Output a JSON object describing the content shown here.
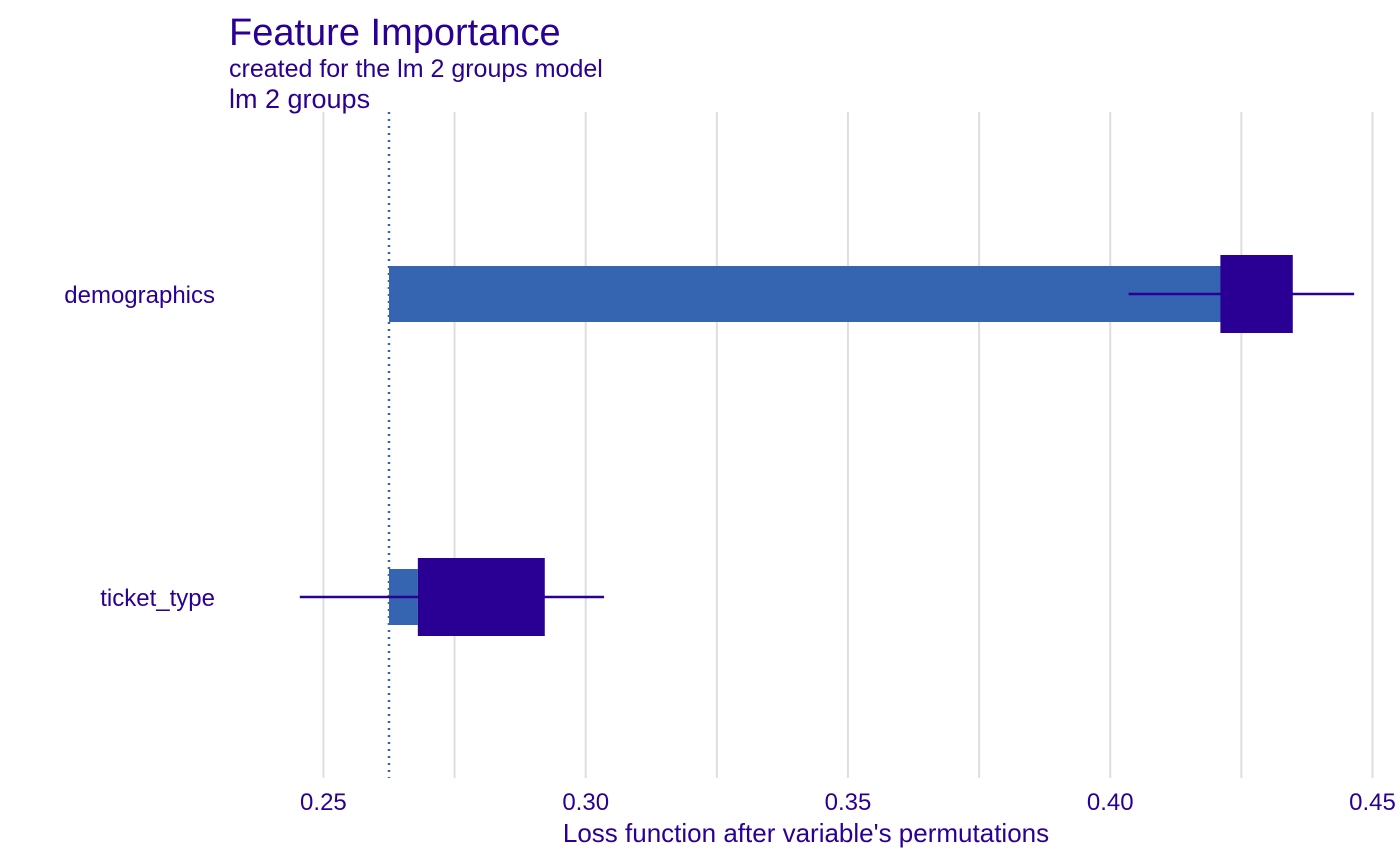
{
  "chart_data": {
    "type": "bar",
    "title": "Feature Importance",
    "subtitle": "created for the lm 2 groups model",
    "facet_label": "lm 2 groups",
    "xlabel": "Loss function after variable's permutations",
    "ylabel": "",
    "xlim": [
      0.232,
      0.452
    ],
    "x_ticks": [
      0.25,
      0.3,
      0.35,
      0.4,
      0.45
    ],
    "x_tick_labels": [
      "0.25",
      "0.30",
      "0.35",
      "0.40",
      "0.45"
    ],
    "x_minor_ticks": [
      0.275,
      0.325,
      0.375,
      0.425
    ],
    "baseline": 0.2625,
    "grid": "vertical",
    "categories": [
      "demographics",
      "ticket_type"
    ],
    "bars": [
      {
        "variable": "demographics",
        "mean": 0.428,
        "box_lower": 0.421,
        "box_upper": 0.4348,
        "whisker_min": 0.4035,
        "whisker_max": 0.4465
      },
      {
        "variable": "ticket_type",
        "mean": 0.268,
        "box_lower": 0.268,
        "box_upper": 0.2922,
        "whisker_min": 0.2455,
        "whisker_max": 0.3035
      }
    ],
    "colors": {
      "text": "#2a0094",
      "bar": "#3564b1",
      "box": "#2a0094",
      "whisker": "#2a0094",
      "baseline": "#3564b1",
      "grid": "#dedede"
    }
  }
}
